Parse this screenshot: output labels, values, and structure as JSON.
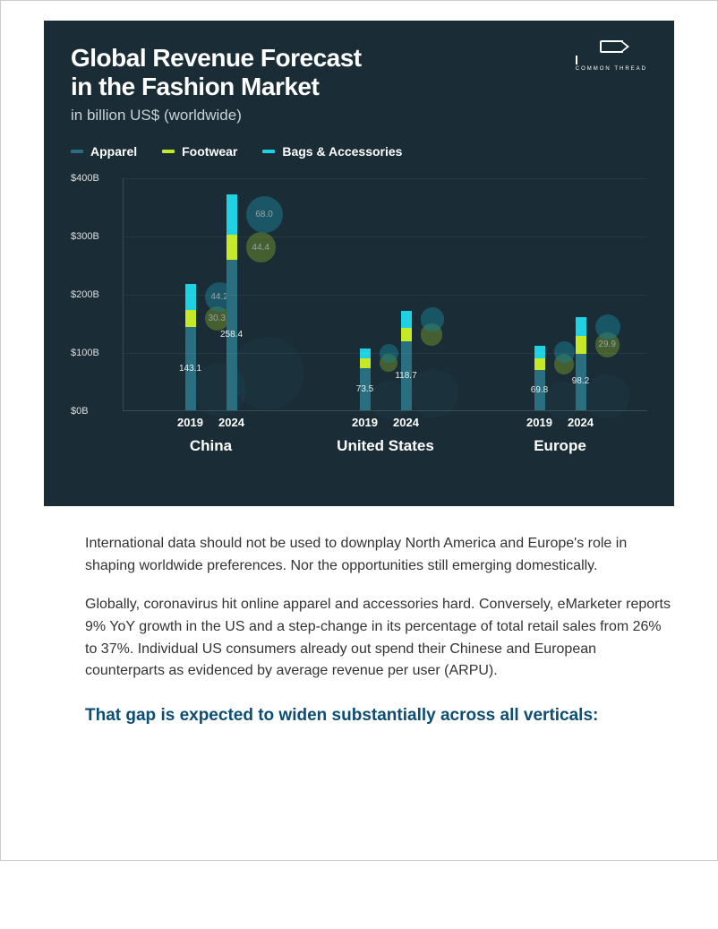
{
  "brand": {
    "name": "COMMON THREAD"
  },
  "chart": {
    "type": "stacked-bar-with-bubbles",
    "title": "Global Revenue Forecast\nin the Fashion Market",
    "subtitle": "in billion US$ (worldwide)",
    "panel_bg": "#1a2c36",
    "title_color": "#ffffff",
    "subtitle_color": "#c9d3d8",
    "grid_color": "rgba(255,255,255,0.06)",
    "axis_color": "rgba(255,255,255,0.15)",
    "y": {
      "min": 0,
      "max": 400,
      "tick_step": 100,
      "prefix": "$",
      "suffix": "B",
      "fontsize": 11
    },
    "series": {
      "apparel": {
        "label": "Apparel",
        "color": "#2a6f80"
      },
      "footwear": {
        "label": "Footwear",
        "color": "#c5e827"
      },
      "bags": {
        "label": "Bags & Accessories",
        "color": "#1fd1e3"
      }
    },
    "bubble_colors": {
      "footwear": "#6a8a2e",
      "bags": "#1a7a8c"
    },
    "bubble_bg_opacity": 0.55,
    "bubble_big_opacity": 0.1,
    "regions": [
      {
        "name": "China",
        "years": [
          {
            "year": "2019",
            "apparel": 143.1,
            "footwear": 30.3,
            "bags": 44.2,
            "bubble_footwear": 30.3,
            "bubble_bags": 44.2,
            "show_bubble_labels": true
          },
          {
            "year": "2024",
            "apparel": 258.4,
            "footwear": 44.4,
            "bags": 68.0,
            "bubble_footwear": 44.4,
            "bubble_bags": 68.0,
            "show_bubble_labels": true
          }
        ]
      },
      {
        "name": "United States",
        "years": [
          {
            "year": "2019",
            "apparel": 73.5,
            "footwear": 16,
            "bags": 18,
            "bubble_footwear": 16,
            "bubble_bags": 18,
            "show_bubble_labels": false
          },
          {
            "year": "2024",
            "apparel": 118.7,
            "footwear": 24,
            "bags": 28,
            "bubble_footwear": 24,
            "bubble_bags": 28,
            "show_bubble_labels": false
          }
        ]
      },
      {
        "name": "Europe",
        "years": [
          {
            "year": "2019",
            "apparel": 69.8,
            "footwear": 20,
            "bags": 22,
            "bubble_footwear": 20,
            "bubble_bags": 22,
            "show_bubble_labels": false
          },
          {
            "year": "2024",
            "apparel": 98.2,
            "footwear": 29.9,
            "bags": 32,
            "bubble_footwear": 29.9,
            "bubble_bags": 32,
            "show_bubble_labels": true,
            "only_label": "footwear"
          }
        ]
      }
    ]
  },
  "body": {
    "p1": "International data should not be used to downplay North America and Europe's role in shaping worldwide preferences. Nor the opportunities still emerging domestically.",
    "p2": "Globally, coronavirus hit online apparel and accessories hard. Conversely, eMarketer reports 9% YoY growth in the US and a step-change in its percentage of total retail sales from 26% to 37%. Individual US consumers already out spend their Chinese and European counterparts as evidenced by average revenue per user (ARPU).",
    "emphasis": "That gap is expected to widen substantially across all verticals:"
  }
}
